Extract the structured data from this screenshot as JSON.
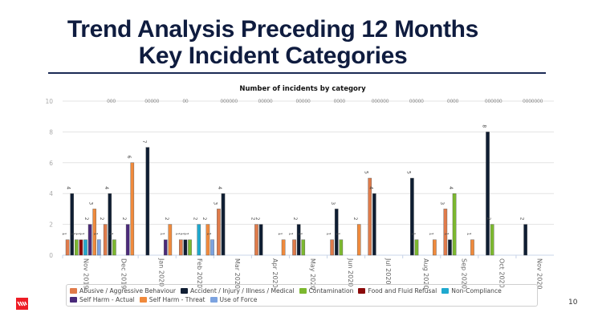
{
  "slide": {
    "title_line1": "Trend Analysis Preceding 12 Months",
    "title_line2": "Key Incident Categories",
    "page_number": "10",
    "logo_icon": "brand-logo-icon",
    "accent_color": "#ee1c25",
    "title_color": "#0f1c3f"
  },
  "chart_data": {
    "type": "bar",
    "title": "Number of incidents by category",
    "xlabel": "",
    "ylabel": "",
    "ylim": [
      0,
      10
    ],
    "yticks": [
      0,
      2,
      4,
      6,
      8,
      10
    ],
    "grid": true,
    "legend_position": "bottom",
    "categories": [
      "Nov 2019",
      "Dec 2019",
      "Jan 2020",
      "Feb 2020",
      "Mar 2020",
      "Apr 2020",
      "May 2020",
      "Jun 2020",
      "Jul 2020",
      "Aug 2020",
      "Sep 2020",
      "Oct 2020",
      "Nov 2020"
    ],
    "zero_label": "0",
    "series": [
      {
        "name": "Abusive / Aggressive Behaviour",
        "color": "#e07b4a",
        "values": [
          1,
          2,
          0,
          1,
          3,
          2,
          1,
          1,
          5,
          0,
          3,
          0,
          0
        ]
      },
      {
        "name": "Accident / Injury / Illness / Medical",
        "color": "#0f1e33",
        "values": [
          4,
          4,
          7,
          1,
          4,
          2,
          2,
          3,
          4,
          5,
          1,
          8,
          2
        ]
      },
      {
        "name": "Contamination",
        "color": "#7cb82f",
        "values": [
          1,
          1,
          0,
          1,
          0,
          0,
          1,
          1,
          0,
          1,
          4,
          2,
          0
        ]
      },
      {
        "name": "Food and Fluid Refusal",
        "color": "#8b0a0a",
        "values": [
          1,
          0,
          0,
          0,
          0,
          0,
          0,
          0,
          0,
          0,
          0,
          0,
          0
        ]
      },
      {
        "name": "Non-Compliance",
        "color": "#1fa9cf",
        "values": [
          1,
          0,
          0,
          2,
          0,
          0,
          0,
          0,
          0,
          0,
          0,
          0,
          0
        ]
      },
      {
        "name": "Self Harm - Actual",
        "color": "#4a2a7a",
        "values": [
          2,
          2,
          1,
          0,
          0,
          0,
          0,
          0,
          0,
          0,
          0,
          0,
          0
        ]
      },
      {
        "name": "Self Harm - Threat",
        "color": "#f08a3c",
        "values": [
          3,
          6,
          2,
          2,
          0,
          1,
          0,
          2,
          0,
          1,
          1,
          0,
          0
        ]
      },
      {
        "name": "Use of Force",
        "color": "#7ca3e0",
        "values": [
          1,
          0,
          0,
          1,
          0,
          0,
          0,
          0,
          0,
          0,
          0,
          0,
          0
        ]
      }
    ]
  }
}
